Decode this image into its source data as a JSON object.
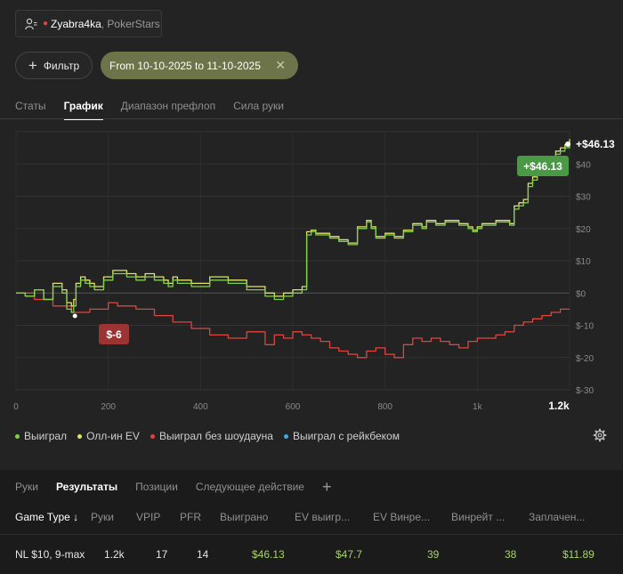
{
  "account": {
    "name": "Zyabra4ka",
    "site": ", PokerStars"
  },
  "filter": {
    "label": "Фильтр",
    "date_chip": "From 10-10-2025 to 11-10-2025"
  },
  "tabs": [
    {
      "label": "Статы",
      "active": false
    },
    {
      "label": "График",
      "active": true
    },
    {
      "label": "Диапазон префлоп",
      "active": false
    },
    {
      "label": "Сила руки",
      "active": false
    }
  ],
  "chart_data": {
    "type": "line",
    "x_ticks": [
      "0",
      "200",
      "400",
      "600",
      "800",
      "1k",
      "1.2k"
    ],
    "y_ticks": [
      "$40",
      "$30",
      "$20",
      "$10",
      "$0",
      "$-10",
      "$-20",
      "$-30"
    ],
    "xlim": [
      0,
      1200
    ],
    "ylim": [
      -30,
      48
    ],
    "grid": true,
    "annotations": {
      "end_value": "+$46.13",
      "end_badge": "+$46.13",
      "min_badge": "$-6"
    },
    "series": [
      {
        "name": "Выиграл",
        "color": "#7fd14a",
        "x": [
          0,
          20,
          40,
          60,
          80,
          100,
          110,
          120,
          125,
          130,
          140,
          150,
          160,
          170,
          190,
          210,
          240,
          260,
          280,
          300,
          320,
          330,
          340,
          350,
          380,
          420,
          460,
          500,
          540,
          560,
          580,
          600,
          610,
          620,
          630,
          640,
          650,
          680,
          700,
          720,
          740,
          760,
          770,
          780,
          800,
          820,
          840,
          860,
          880,
          890,
          910,
          930,
          960,
          980,
          990,
          1000,
          1010,
          1040,
          1070,
          1080,
          1090,
          1100,
          1110,
          1120,
          1130,
          1140,
          1150,
          1160,
          1170,
          1180,
          1190,
          1200
        ],
        "y": [
          0,
          -1,
          1,
          -2,
          2,
          0,
          -5,
          -6,
          -4,
          2,
          4,
          3,
          2,
          1,
          4,
          6,
          5,
          4,
          5,
          4,
          3,
          2,
          4,
          3,
          2,
          4,
          3,
          1,
          -1,
          -2,
          -1,
          0,
          0,
          1,
          18,
          19,
          18,
          17,
          16,
          15,
          20,
          22,
          20,
          17,
          18,
          17,
          19,
          21,
          20,
          22,
          21,
          22,
          21,
          20,
          19,
          20,
          21,
          22,
          21,
          26,
          27,
          28,
          33,
          35,
          38,
          39,
          40,
          41,
          43,
          44,
          45,
          46.13
        ]
      },
      {
        "name": "Олл-ин EV",
        "color": "#e2e36a",
        "x": [
          0,
          20,
          40,
          60,
          80,
          100,
          110,
          120,
          125,
          130,
          140,
          150,
          160,
          170,
          190,
          210,
          240,
          260,
          280,
          300,
          320,
          330,
          340,
          350,
          380,
          420,
          460,
          500,
          540,
          560,
          580,
          600,
          610,
          620,
          630,
          640,
          650,
          680,
          700,
          720,
          740,
          760,
          770,
          780,
          800,
          820,
          840,
          860,
          880,
          890,
          910,
          930,
          960,
          980,
          990,
          1000,
          1010,
          1040,
          1070,
          1080,
          1090,
          1100,
          1110,
          1120,
          1130,
          1140,
          1150,
          1160,
          1170,
          1180,
          1190,
          1200
        ],
        "y": [
          0,
          -1,
          1,
          -2,
          3,
          1,
          -3,
          -4,
          -2,
          3,
          5,
          4,
          3,
          2,
          5,
          7,
          6,
          5,
          6,
          5,
          4,
          3,
          5,
          4,
          3,
          5,
          4,
          2,
          0,
          -1,
          0,
          1,
          1,
          2,
          19,
          19.5,
          18.5,
          17.5,
          16.5,
          15.5,
          20.5,
          22.5,
          20.5,
          17.5,
          18.5,
          17.5,
          19.5,
          21.5,
          20.5,
          22.5,
          21.5,
          22.5,
          21.5,
          20.5,
          19.5,
          20.5,
          21.5,
          22.5,
          21.5,
          27,
          28,
          29,
          34,
          36,
          39,
          40,
          41,
          42,
          44,
          45,
          46,
          47.7
        ]
      },
      {
        "name": "Выиграл без шоудауна",
        "color": "#e0443e",
        "x": [
          0,
          40,
          80,
          120,
          160,
          200,
          220,
          260,
          300,
          340,
          380,
          420,
          460,
          500,
          540,
          560,
          580,
          600,
          620,
          640,
          660,
          680,
          700,
          720,
          740,
          760,
          780,
          800,
          820,
          840,
          860,
          880,
          900,
          920,
          940,
          960,
          980,
          1000,
          1040,
          1060,
          1080,
          1100,
          1120,
          1140,
          1160,
          1180,
          1200
        ],
        "y": [
          0,
          -2,
          -4,
          -6,
          -5,
          -3,
          -4,
          -5,
          -7,
          -9,
          -11,
          -13,
          -14,
          -12,
          -16,
          -13,
          -14,
          -12,
          -13,
          -14,
          -15,
          -17,
          -18,
          -19,
          -20,
          -18,
          -17,
          -19,
          -20,
          -16,
          -14,
          -15,
          -14,
          -15,
          -16,
          -17,
          -15,
          -14,
          -13,
          -12,
          -10,
          -9,
          -8,
          -7,
          -6,
          -5,
          -5
        ]
      },
      {
        "name": "Выиграл с рейкбеком",
        "color": "#3ea7e6",
        "x": [],
        "y": []
      }
    ]
  },
  "bottom_tabs": [
    {
      "label": "Руки",
      "active": false
    },
    {
      "label": "Результаты",
      "active": true
    },
    {
      "label": "Позиции",
      "active": false
    },
    {
      "label": "Следующее действие",
      "active": false
    }
  ],
  "table": {
    "columns": [
      "Game Type ↓",
      "Руки",
      "VPIP",
      "PFR",
      "Выиграно",
      "EV выигр...",
      "EV Винре...",
      "Винрейт ...",
      "Заплачен..."
    ],
    "row": [
      "NL $10, 9-max",
      "1.2k",
      "17",
      "14",
      "$46.13",
      "$47.7",
      "39",
      "38",
      "$11.89"
    ]
  }
}
